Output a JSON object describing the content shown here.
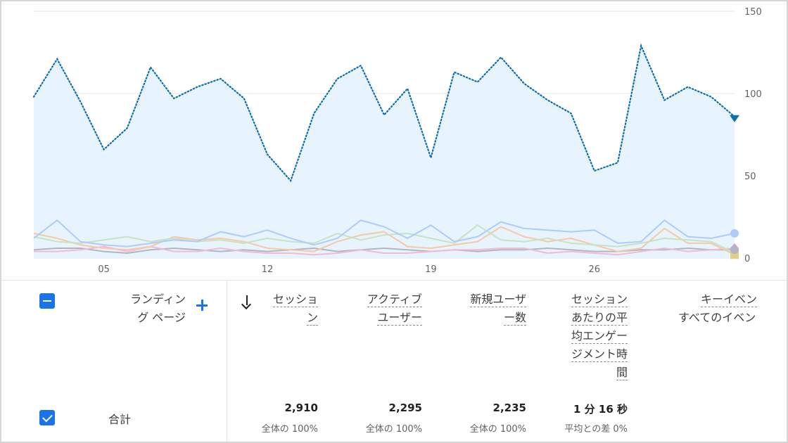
{
  "chart_data": {
    "type": "line",
    "x_ticks": [
      "05",
      "12",
      "19",
      "26"
    ],
    "y_ticks": [
      "150",
      "100",
      "50",
      "0"
    ],
    "ylim": [
      0,
      150
    ],
    "grid": true,
    "series": [
      {
        "color": "#1a73e8",
        "style": "dotted-area",
        "values": [
          98,
          121,
          95,
          66,
          79,
          116,
          97,
          104,
          109,
          97,
          63,
          47,
          88,
          109,
          117,
          87,
          103,
          61,
          113,
          107,
          122,
          106,
          96,
          88,
          53,
          58,
          129,
          96,
          104,
          98,
          86
        ]
      },
      {
        "color": "#aecbfa",
        "values": [
          12,
          23,
          10,
          8,
          7,
          9,
          11,
          10,
          16,
          13,
          17,
          12,
          8,
          12,
          23,
          19,
          12,
          20,
          10,
          13,
          22,
          18,
          17,
          16,
          17,
          9,
          10,
          23,
          13,
          12,
          15
        ]
      },
      {
        "color": "#c6e3c4",
        "values": [
          13,
          10,
          9,
          11,
          13,
          10,
          12,
          10,
          11,
          9,
          12,
          10,
          9,
          15,
          11,
          14,
          15,
          12,
          9,
          20,
          11,
          10,
          12,
          9,
          8,
          7,
          9,
          12,
          11,
          10,
          3
        ]
      },
      {
        "color": "#f6c9a6",
        "values": [
          15,
          12,
          8,
          6,
          5,
          7,
          13,
          11,
          12,
          10,
          6,
          5,
          4,
          10,
          14,
          16,
          7,
          6,
          8,
          10,
          19,
          13,
          10,
          12,
          8,
          4,
          6,
          18,
          9,
          9,
          2
        ]
      },
      {
        "color": "#f4b9d3",
        "values": [
          4,
          4,
          5,
          7,
          4,
          7,
          4,
          4,
          6,
          4,
          3,
          3,
          2,
          3,
          5,
          3,
          3,
          4,
          5,
          5,
          6,
          6,
          3,
          4,
          3,
          2,
          4,
          6,
          4,
          5,
          6
        ]
      },
      {
        "color": "#b0b6c2",
        "values": [
          5,
          6,
          6,
          4,
          3,
          5,
          6,
          5,
          4,
          5,
          4,
          5,
          6,
          4,
          5,
          6,
          5,
          4,
          5,
          4,
          5,
          5,
          6,
          5,
          4,
          4,
          5,
          5,
          6,
          5,
          5
        ]
      }
    ]
  },
  "table": {
    "select_all_state": "indeterminate",
    "dimension_header": [
      "ランディン",
      "グ ページ"
    ],
    "add_dimension_icon": "plus-icon",
    "sort_icon": "arrow-down-icon",
    "columns": [
      {
        "lines": [
          "セッショ",
          "ン"
        ]
      },
      {
        "lines": [
          "アクティブ",
          "ユーザー"
        ]
      },
      {
        "lines": [
          "新規ユーザ",
          "ー数"
        ]
      },
      {
        "lines": [
          "セッション",
          "あたりの平",
          "均エンゲー",
          "ジメント時",
          "間"
        ]
      },
      {
        "lines": [
          "キーイベン",
          "すべてのイベン"
        ]
      }
    ],
    "total_row": {
      "checked": true,
      "label": "合計",
      "values": [
        "2,910",
        "2,295",
        "2,235",
        "1 分 16 秒"
      ],
      "subs": [
        "全体の 100%",
        "全体の 100%",
        "全体の 100%",
        "平均との差 0%"
      ]
    }
  }
}
